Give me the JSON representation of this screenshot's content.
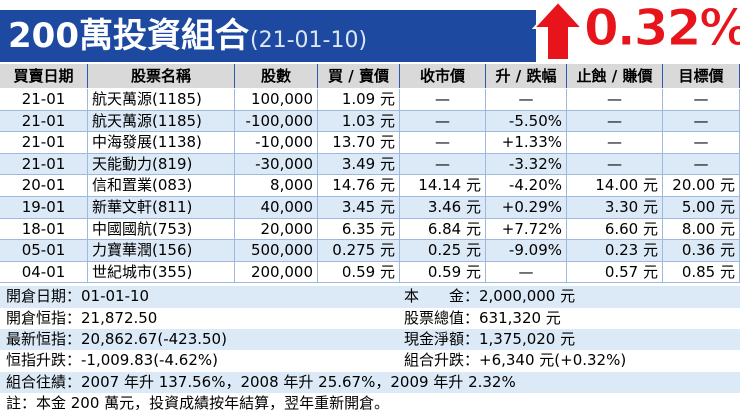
{
  "header": {
    "title": "200萬投資組合",
    "date": "(21-01-10)",
    "change": "0.32%"
  },
  "table": {
    "columns": [
      "買賣日期",
      "股票名稱",
      "股數",
      "買 / 賣價",
      "收市價",
      "升 / 跌幅",
      "止蝕 / 賺價",
      "目標價"
    ],
    "rows": [
      [
        "21-01",
        "航天萬源(1185)",
        "100,000",
        "1.09 元",
        "—",
        "—",
        "—",
        "—"
      ],
      [
        "21-01",
        "航天萬源(1185)",
        "-100,000",
        "1.03 元",
        "—",
        "-5.50%",
        "—",
        "—"
      ],
      [
        "21-01",
        "中海發展(1138)",
        "-10,000",
        "13.70 元",
        "—",
        "+1.33%",
        "—",
        "—"
      ],
      [
        "21-01",
        "天能動力(819)",
        "-30,000",
        "3.49 元",
        "—",
        "-3.32%",
        "—",
        "—"
      ],
      [
        "20-01",
        "信和置業(083)",
        "8,000",
        "14.76 元",
        "14.14 元",
        "-4.20%",
        "14.00 元",
        "20.00 元"
      ],
      [
        "19-01",
        "新華文軒(811)",
        "40,000",
        "3.45 元",
        "3.46 元",
        "+0.29%",
        "3.30 元",
        "5.00 元"
      ],
      [
        "18-01",
        "中國國航(753)",
        "20,000",
        "6.35 元",
        "6.84 元",
        "+7.72%",
        "6.60 元",
        "8.00 元"
      ],
      [
        "05-01",
        "力寶華潤(156)",
        "500,000",
        "0.275 元",
        "0.25 元",
        "-9.09%",
        "0.23 元",
        "0.36 元"
      ],
      [
        "04-01",
        "世紀城市(355)",
        "200,000",
        "0.59 元",
        "0.59 元",
        "—",
        "0.57 元",
        "0.85 元"
      ]
    ]
  },
  "summary": {
    "left": [
      "開倉日期：01-01-10",
      "開倉恒指：21,872.50",
      "最新恒指：20,862.67(-423.50)",
      "恒指升跌：-1,009.83(-4.62%)"
    ],
    "right": [
      "本　　金：2,000,000 元",
      "股票總值：631,320 元",
      "現金淨額：1,375,020 元",
      "組合升跌：+6,340 元(+0.32%)"
    ],
    "record": "組合往績：2007 年升 137.56%，2008 年升 25.67%，2009 年升 2.32%",
    "note": "註：本金 200 萬元，投資成績按年結算，翌年重新開倉。"
  }
}
